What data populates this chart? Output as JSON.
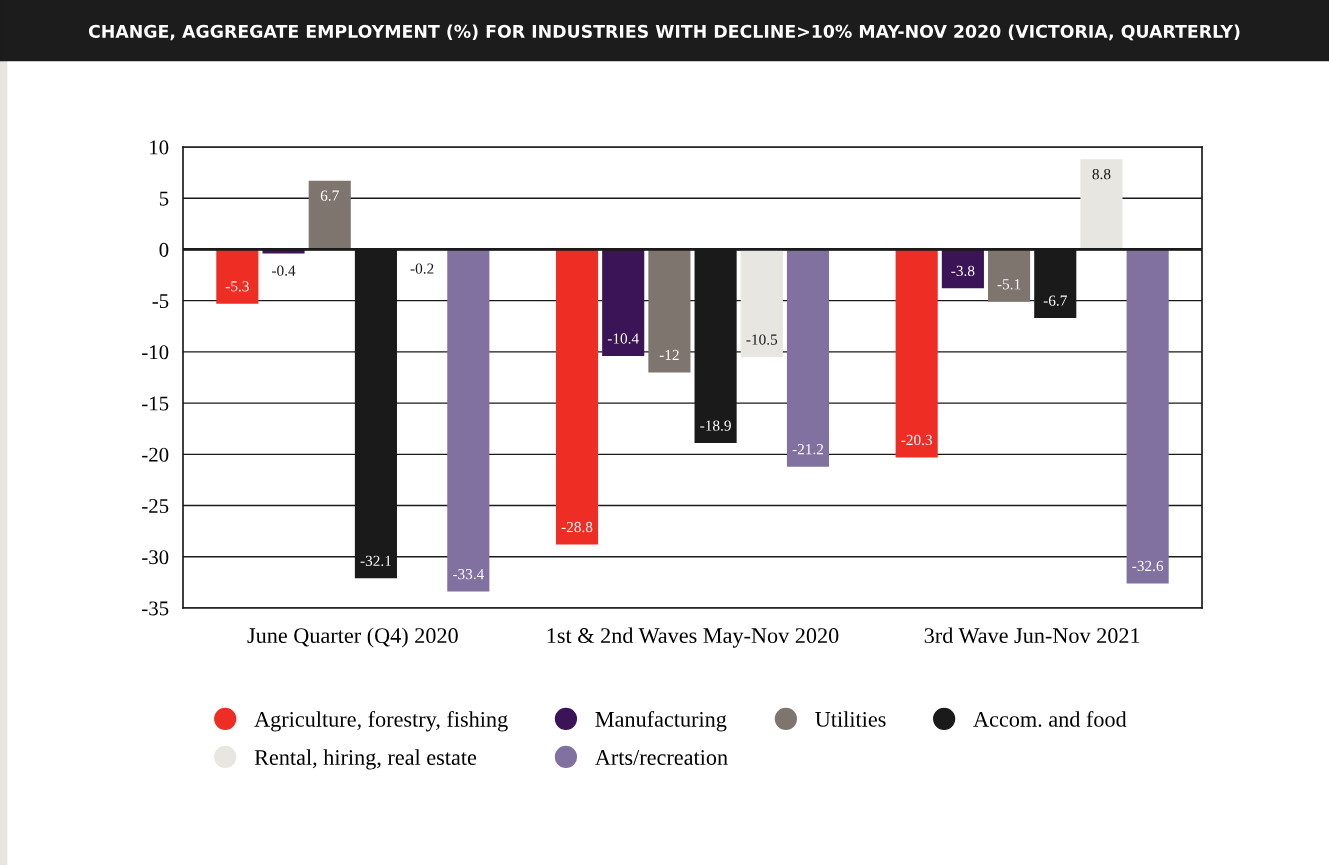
{
  "chart_data": {
    "type": "bar",
    "title": "CHANGE, AGGREGATE EMPLOYMENT (%) FOR INDUSTRIES WITH DECLINE>10% MAY-NOV 2020 (VICTORIA, QUARTERLY)",
    "categories": [
      "June Quarter (Q4) 2020",
      "1st & 2nd Waves May-Nov 2020",
      "3rd Wave Jun-Nov 2021"
    ],
    "series": [
      {
        "name": "Agriculture, forestry, fishing",
        "color": "#ee2e24",
        "values": [
          -5.3,
          -28.8,
          -20.3
        ]
      },
      {
        "name": "Manufacturing",
        "color": "#3b1457",
        "values": [
          -0.4,
          -10.4,
          -3.8
        ]
      },
      {
        "name": "Utilities",
        "color": "#7f756f",
        "values": [
          6.7,
          -12,
          -5.1
        ]
      },
      {
        "name": "Accom. and food",
        "color": "#1a1a1a",
        "values": [
          -32.1,
          -18.9,
          -6.7
        ]
      },
      {
        "name": "Rental, hiring, real estate",
        "color": "#e8e6e1",
        "values": [
          -0.2,
          -10.5,
          8.8
        ]
      },
      {
        "name": "Arts/recreation",
        "color": "#8171a0",
        "values": [
          -33.4,
          -21.2,
          -32.6
        ]
      }
    ],
    "ylim": [
      -35,
      10
    ],
    "yticks": [
      -35,
      -30,
      -25,
      -20,
      -15,
      -10,
      -5,
      0,
      5,
      10
    ],
    "grid": "y",
    "legend": "bottom",
    "data_labels": true
  }
}
